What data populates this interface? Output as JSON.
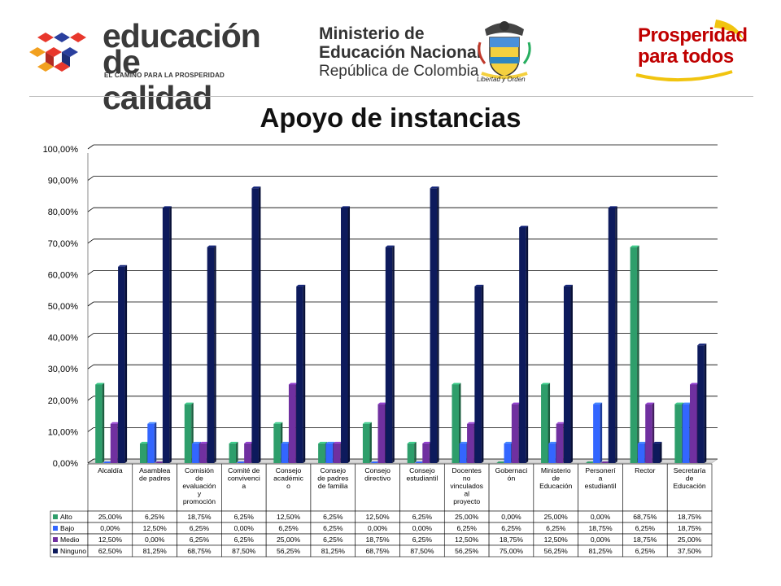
{
  "header": {
    "edu_logo": {
      "line1": "educación",
      "line2": "de calidad",
      "tagline": "EL CAMINO PARA LA PROSPERIDAD"
    },
    "ministry": {
      "line1": "Ministerio de",
      "line2": "Educación Nacional",
      "line3": "República de Colombia"
    },
    "shield": {
      "caption": "Libertad y Orden"
    },
    "prosperidad": {
      "line1": "Prosperidad",
      "line2": "para todos"
    }
  },
  "page_title": "Apoyo de instancias",
  "colors": {
    "Alto": "#2e9e6b",
    "Bajo": "#3366ff",
    "Medio": "#7030a0",
    "Ninguno": "#0d1a5c",
    "grid": "#000000"
  },
  "chart_data": {
    "type": "bar",
    "title": "Apoyo de instancias",
    "ylim": [
      0,
      100
    ],
    "y_ticks": [
      "0,00%",
      "10,00%",
      "20,00%",
      "30,00%",
      "40,00%",
      "50,00%",
      "60,00%",
      "70,00%",
      "80,00%",
      "90,00%",
      "100,00%"
    ],
    "grid": true,
    "legend": "data-table",
    "categories": [
      "Alcaldía",
      "Asamblea de padres",
      "Comisión de evaluación y promoción",
      "Comité de convivencia",
      "Consejo académico",
      "Consejo de padres de familia",
      "Consejo directivo",
      "Consejo estudiantil",
      "Docentes no vinculados al proyecto",
      "Gobernación",
      "Ministerio de Educación",
      "Personería estudiantil",
      "Rector",
      "Secretaría de Educación"
    ],
    "category_lines": [
      [
        "Alcaldía"
      ],
      [
        "Asamblea",
        "de padres"
      ],
      [
        "Comisión",
        "de",
        "evaluación",
        "y",
        "promoción"
      ],
      [
        "Comité de",
        "convivenci",
        "a"
      ],
      [
        "Consejo",
        "académic",
        "o"
      ],
      [
        "Consejo",
        "de padres",
        "de familia"
      ],
      [
        "Consejo",
        "directivo"
      ],
      [
        "Consejo",
        "estudiantil"
      ],
      [
        "Docentes",
        "no",
        "vinculados",
        "al",
        "proyecto"
      ],
      [
        "Gobernaci",
        "ón"
      ],
      [
        "Ministerio",
        "de",
        "Educación"
      ],
      [
        "Personerí",
        "a",
        "estudiantil"
      ],
      [
        "Rector"
      ],
      [
        "Secretaría",
        "de",
        "Educación"
      ]
    ],
    "series": [
      {
        "name": "Alto",
        "values": [
          25.0,
          6.25,
          18.75,
          6.25,
          12.5,
          6.25,
          12.5,
          6.25,
          25.0,
          0.0,
          25.0,
          0.0,
          68.75,
          18.75
        ],
        "labels": [
          "25,00%",
          "6,25%",
          "18,75%",
          "6,25%",
          "12,50%",
          "6,25%",
          "12,50%",
          "6,25%",
          "25,00%",
          "0,00%",
          "25,00%",
          "0,00%",
          "68,75%",
          "18,75%"
        ]
      },
      {
        "name": "Bajo",
        "values": [
          0.0,
          12.5,
          6.25,
          0.0,
          6.25,
          6.25,
          0.0,
          0.0,
          6.25,
          6.25,
          6.25,
          18.75,
          6.25,
          18.75
        ],
        "labels": [
          "0,00%",
          "12,50%",
          "6,25%",
          "0,00%",
          "6,25%",
          "6,25%",
          "0,00%",
          "0,00%",
          "6,25%",
          "6,25%",
          "6,25%",
          "18,75%",
          "6,25%",
          "18,75%"
        ]
      },
      {
        "name": "Medio",
        "values": [
          12.5,
          0.0,
          6.25,
          6.25,
          25.0,
          6.25,
          18.75,
          6.25,
          12.5,
          18.75,
          12.5,
          0.0,
          18.75,
          25.0
        ],
        "labels": [
          "12,50%",
          "0,00%",
          "6,25%",
          "6,25%",
          "25,00%",
          "6,25%",
          "18,75%",
          "6,25%",
          "12,50%",
          "18,75%",
          "12,50%",
          "0,00%",
          "18,75%",
          "25,00%"
        ]
      },
      {
        "name": "Ninguno",
        "values": [
          62.5,
          81.25,
          68.75,
          87.5,
          56.25,
          81.25,
          68.75,
          87.5,
          56.25,
          75.0,
          56.25,
          81.25,
          6.25,
          37.5
        ],
        "labels": [
          "62,50%",
          "81,25%",
          "68,75%",
          "87,50%",
          "56,25%",
          "81,25%",
          "68,75%",
          "87,50%",
          "56,25%",
          "75,00%",
          "56,25%",
          "81,25%",
          "6,25%",
          "37,50%"
        ]
      }
    ]
  }
}
